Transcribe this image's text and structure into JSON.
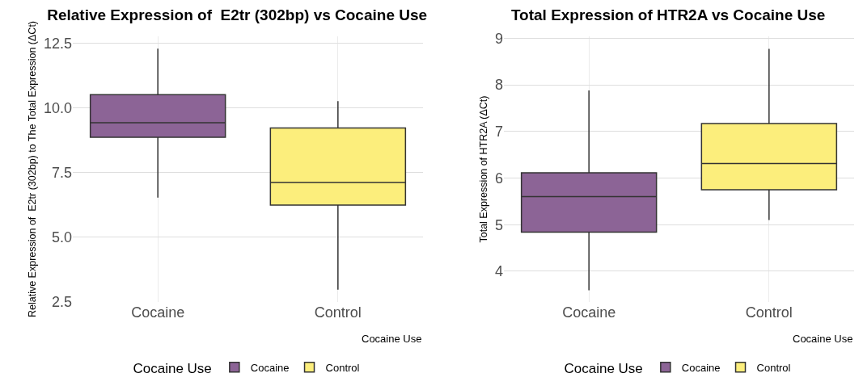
{
  "chart_data": [
    {
      "type": "box",
      "title": "Relative Expression of  E2tr (302bp) vs Cocaine Use",
      "xlabel": "Cocaine Use",
      "ylabel": "Relative Expression of  E2tr (302bp) to The Total Expression (ΔCt)",
      "legend_title": "Cocaine Use",
      "categories": [
        "Cocaine",
        "Control"
      ],
      "ylim": [
        2.48,
        12.77
      ],
      "yticks": [
        2.5,
        {
          "value": 5,
          "label": "5.0"
        },
        7.5,
        {
          "value": 10,
          "label": "10.0"
        },
        12.5
      ],
      "grid": true,
      "legend": "bottom",
      "series": [
        {
          "name": "Cocaine",
          "color": "#8c6496",
          "boxes": [
            {
              "low": 6.52,
              "q1": 8.86,
              "median": 9.42,
              "q3": 10.51,
              "high": 12.29
            },
            null
          ]
        },
        {
          "name": "Control",
          "color": "#fcee7c",
          "boxes": [
            null,
            {
              "low": 2.96,
              "q1": 6.23,
              "median": 7.11,
              "q3": 9.22,
              "high": 10.26
            }
          ]
        }
      ]
    },
    {
      "type": "box",
      "title": "Total Expression of HTR2A vs Cocaine Use",
      "xlabel": "Cocaine Use",
      "ylabel": "Total Expression of HTR2A (ΔCt)",
      "legend_title": "Cocaine Use",
      "categories": [
        "Cocaine",
        "Control"
      ],
      "ylim": [
        3.34,
        9.04
      ],
      "yticks": [
        4,
        5,
        6,
        7,
        8,
        9
      ],
      "grid": true,
      "legend": "bottom",
      "series": [
        {
          "name": "Cocaine",
          "color": "#8c6496",
          "boxes": [
            {
              "low": 3.59,
              "q1": 4.84,
              "median": 5.6,
              "q3": 6.11,
              "high": 7.88
            },
            null
          ]
        },
        {
          "name": "Control",
          "color": "#fcee7c",
          "boxes": [
            null,
            {
              "low": 5.1,
              "q1": 5.75,
              "median": 6.31,
              "q3": 7.17,
              "high": 8.77
            }
          ]
        }
      ]
    }
  ]
}
